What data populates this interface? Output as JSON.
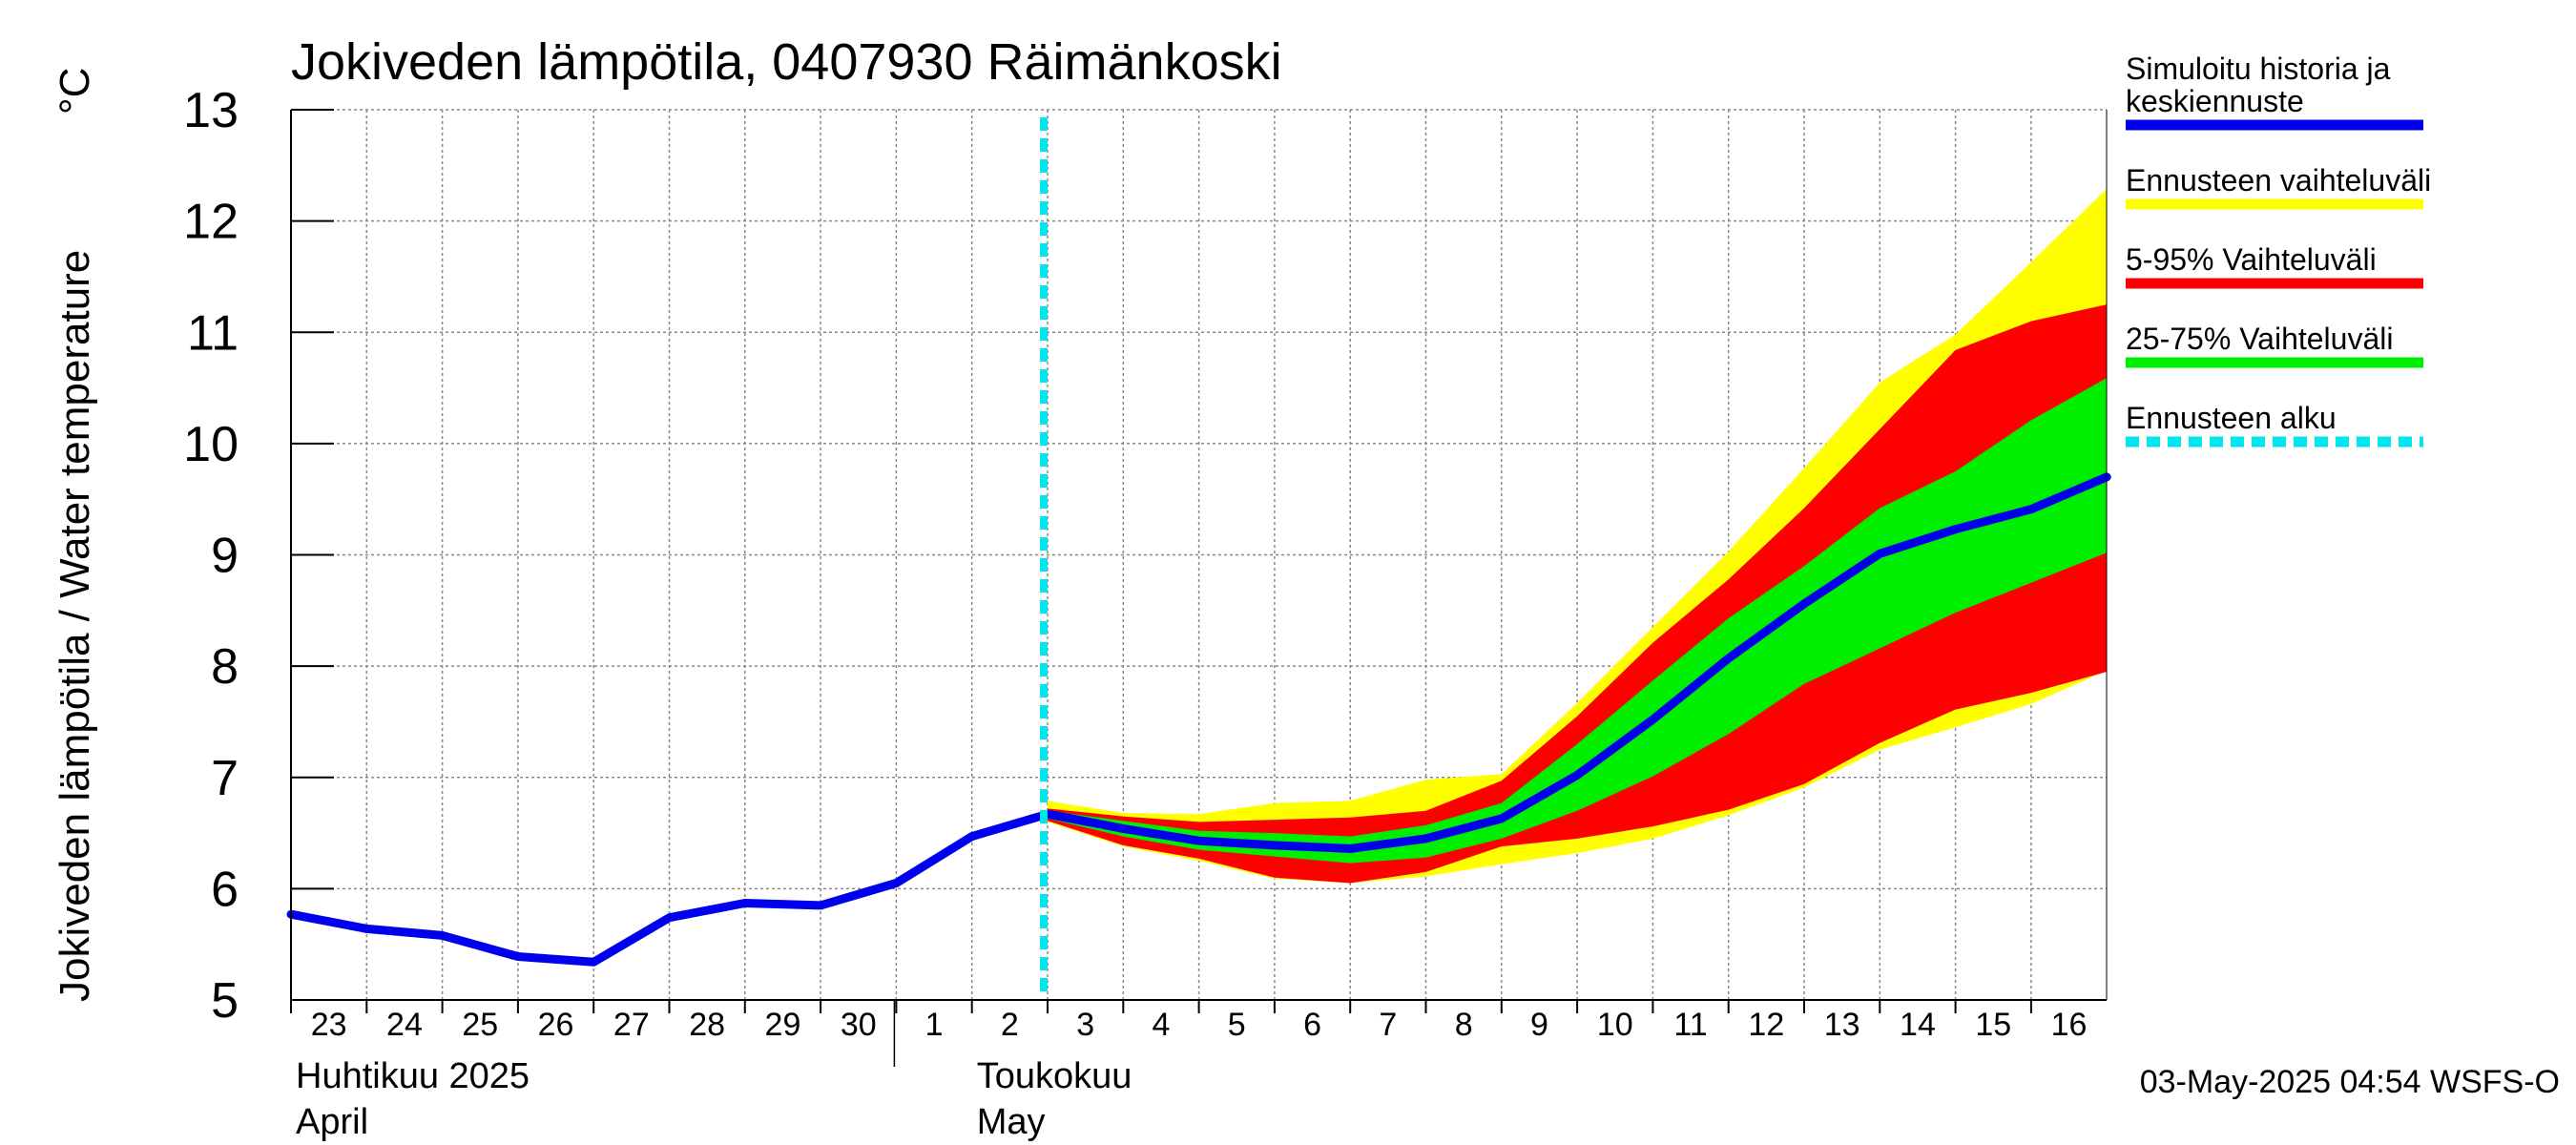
{
  "chart_data": {
    "type": "area",
    "title": "Jokiveden lämpötila, 0407930 Räimänkoski",
    "ylabel": "Jokiveden lämpötila / Water temperature",
    "yunit": "°C",
    "ylim": [
      5,
      13
    ],
    "yticks": [
      5,
      6,
      7,
      8,
      9,
      10,
      11,
      12,
      13
    ],
    "grid": true,
    "legend_placement": "right",
    "x_days": [
      "23",
      "24",
      "25",
      "26",
      "27",
      "28",
      "29",
      "30",
      "1",
      "2",
      "3",
      "4",
      "5",
      "6",
      "7",
      "8",
      "9",
      "10",
      "11",
      "12",
      "13",
      "14",
      "15",
      "16"
    ],
    "x_values": [
      "2025-04-23",
      "2025-04-24",
      "2025-04-25",
      "2025-04-26",
      "2025-04-27",
      "2025-04-28",
      "2025-04-29",
      "2025-04-30",
      "2025-05-01",
      "2025-05-02",
      "2025-05-03",
      "2025-05-04",
      "2025-05-05",
      "2025-05-06",
      "2025-05-07",
      "2025-05-08",
      "2025-05-09",
      "2025-05-10",
      "2025-05-11",
      "2025-05-12",
      "2025-05-13",
      "2025-05-14",
      "2025-05-15",
      "2025-05-16",
      "2025-05-17"
    ],
    "month_labels": [
      {
        "fi": "Huhtikuu  2025",
        "en": "April",
        "start": "2025-04-23"
      },
      {
        "fi": "Toukokuu",
        "en": "May",
        "start": "2025-05-02"
      }
    ],
    "month_separator": "2025-05-01",
    "forecast_start": "2025-05-03",
    "series": [
      {
        "name": "Simuloitu historia ja keskiennuste",
        "legend_lines": [
          "Simuloitu historia ja",
          "keskiennuste"
        ],
        "color": "#0000ee",
        "kind": "line",
        "values": [
          5.77,
          5.64,
          5.58,
          5.39,
          5.34,
          5.74,
          5.87,
          5.85,
          6.05,
          6.47,
          6.67,
          6.54,
          6.43,
          6.39,
          6.36,
          6.45,
          6.63,
          7.02,
          7.52,
          8.07,
          8.56,
          9.01,
          9.23,
          9.41,
          9.7
        ]
      },
      {
        "name": "Ennusteen vaihteluväli",
        "color": "#ffff00",
        "kind": "band",
        "x_start": "2025-05-03",
        "low": [
          6.6,
          6.38,
          6.25,
          6.09,
          6.05,
          6.11,
          6.22,
          6.32,
          6.45,
          6.66,
          6.91,
          7.25,
          7.45,
          7.66,
          7.96
        ],
        "high": [
          6.79,
          6.68,
          6.67,
          6.77,
          6.79,
          6.98,
          7.03,
          7.67,
          8.35,
          9.03,
          9.78,
          10.55,
          10.98,
          11.63,
          12.29
        ]
      },
      {
        "name": "5-95% Vaihteluväli",
        "color": "#ff0000",
        "kind": "band",
        "x_start": "2025-05-03",
        "low": [
          6.61,
          6.39,
          6.27,
          6.1,
          6.05,
          6.15,
          6.38,
          6.45,
          6.56,
          6.71,
          6.94,
          7.31,
          7.61,
          7.76,
          7.95
        ],
        "high": [
          6.72,
          6.65,
          6.6,
          6.62,
          6.64,
          6.7,
          6.97,
          7.55,
          8.21,
          8.78,
          9.42,
          10.13,
          10.84,
          11.1,
          11.25
        ]
      },
      {
        "name": "25-75% Vaihteluväli",
        "color": "#00ee00",
        "kind": "band",
        "x_start": "2025-05-03",
        "low": [
          6.63,
          6.47,
          6.35,
          6.29,
          6.23,
          6.28,
          6.45,
          6.7,
          7.01,
          7.39,
          7.84,
          8.16,
          8.48,
          8.75,
          9.02
        ],
        "high": [
          6.7,
          6.61,
          6.52,
          6.5,
          6.47,
          6.57,
          6.77,
          7.3,
          7.87,
          8.43,
          8.9,
          9.42,
          9.75,
          10.21,
          10.59
        ]
      }
    ],
    "legend": [
      {
        "label_lines": [
          "Simuloitu historia ja",
          "keskiennuste"
        ],
        "color": "#0000ee",
        "style": "solid"
      },
      {
        "label_lines": [
          "Ennusteen vaihteluväli"
        ],
        "color": "#ffff00",
        "style": "solid"
      },
      {
        "label_lines": [
          "5-95% Vaihteluväli"
        ],
        "color": "#ff0000",
        "style": "solid"
      },
      {
        "label_lines": [
          "25-75% Vaihteluväli"
        ],
        "color": "#00ee00",
        "style": "solid"
      },
      {
        "label_lines": [
          "Ennusteen alku"
        ],
        "color": "#00e5ee",
        "style": "dashed"
      }
    ],
    "footer": "03-May-2025 04:54 WSFS-O"
  }
}
